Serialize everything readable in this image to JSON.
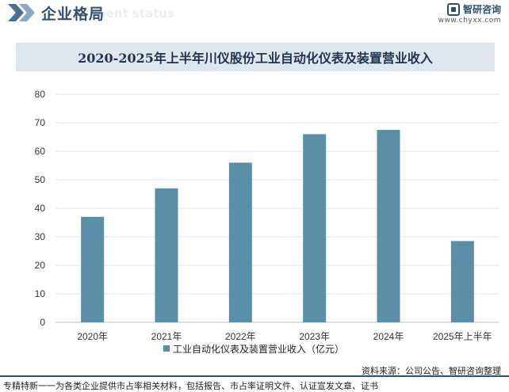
{
  "header": {
    "title": "企业格局",
    "ghost_text": "ment status",
    "brand_name": "智研咨询",
    "brand_url": "www.chyxx.com"
  },
  "chart_data": {
    "type": "bar",
    "title": "2020-2025年上半年川仪股份工业自动化仪表及装置营业收入",
    "categories": [
      "2020年",
      "2021年",
      "2022年",
      "2023年",
      "2024年",
      "2025年上半年"
    ],
    "series": [
      {
        "name": "工业自动化仪表及装置营业收入（亿元）",
        "values": [
          37,
          47,
          56,
          66,
          67.5,
          28.5
        ]
      }
    ],
    "ylim": [
      0,
      80
    ],
    "yticks": [
      0,
      10,
      20,
      30,
      40,
      50,
      60,
      70,
      80
    ],
    "grid": true,
    "legend_position": "bottom",
    "bar_color": "#5b8fa8"
  },
  "source": "资料来源：公司公告、智研咨询整理",
  "footer": "专精特新一一为各类企业提供市占率相关材料，包括报告、市占率证明文件、认证宣发文章、证书"
}
